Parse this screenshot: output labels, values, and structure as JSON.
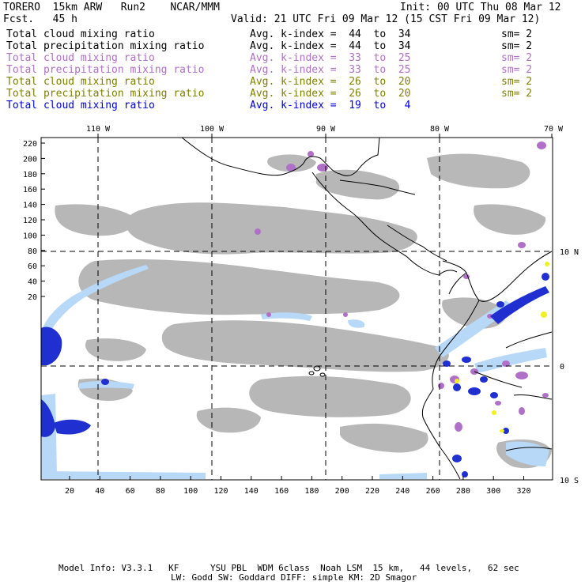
{
  "header": {
    "model_line": "TORERO  15km ARW   Run2    NCAR/MMM",
    "fcst_line": "Fcst.   45 h",
    "init_line": "Init: 00 UTC Thu 08 Mar 12",
    "valid_line": "Valid: 21 UTC Fri 09 Mar 12 (15 CST Fri 09 Mar 12)"
  },
  "legend": [
    {
      "field": "Total cloud mixing ratio",
      "index": "Avg. k-index =  44  to  34",
      "sm": "sm= 2",
      "color": "#000000"
    },
    {
      "field": "Total precipitation mixing ratio",
      "index": "Avg. k-index =  44  to  34",
      "sm": "sm= 2",
      "color": "#000000"
    },
    {
      "field": "Total cloud mixing ratio",
      "index": "Avg. k-index =  33  to  25",
      "sm": "sm= 2",
      "color": "#b070c8"
    },
    {
      "field": "Total precipitation mixing ratio",
      "index": "Avg. k-index =  33  to  25",
      "sm": "sm= 2",
      "color": "#b070c8"
    },
    {
      "field": "Total cloud mixing ratio",
      "index": "Avg. k-index =  26  to  20",
      "sm": "sm= 2",
      "color": "#808000"
    },
    {
      "field": "Total precipitation mixing ratio",
      "index": "Avg. k-index =  26  to  20",
      "sm": "sm= 2",
      "color": "#808000"
    },
    {
      "field": "Total cloud mixing ratio",
      "index": "Avg. k-index =  19  to   4",
      "sm": "",
      "color": "#0000e0"
    }
  ],
  "map": {
    "lon_labels": [
      "110 W",
      "100 W",
      "90 W",
      "80 W",
      "70 W"
    ],
    "lat_labels": [
      "10 N",
      "0",
      "10 S"
    ],
    "y_ticks": [
      "220",
      "200",
      "180",
      "160",
      "140",
      "120",
      "100",
      "80",
      "60",
      "40",
      "20"
    ],
    "x_ticks": [
      "20",
      "40",
      "60",
      "80",
      "100",
      "120",
      "140",
      "160",
      "180",
      "200",
      "220",
      "240",
      "260",
      "280",
      "300",
      "320"
    ],
    "colors": {
      "gray": "#b4b4b4",
      "purple": "#b070c8",
      "blue": "#2030d0",
      "lightblue": "#b8d8f8",
      "yellow": "#f0f020"
    }
  },
  "footer": {
    "line1": "Model Info: V3.3.1   KF      YSU PBL  WDM 6class  Noah LSM  15 km,   44 levels,   62 sec",
    "line2": "LW: Godd SW: Goddard DIFF: simple KM: 2D Smagor"
  }
}
